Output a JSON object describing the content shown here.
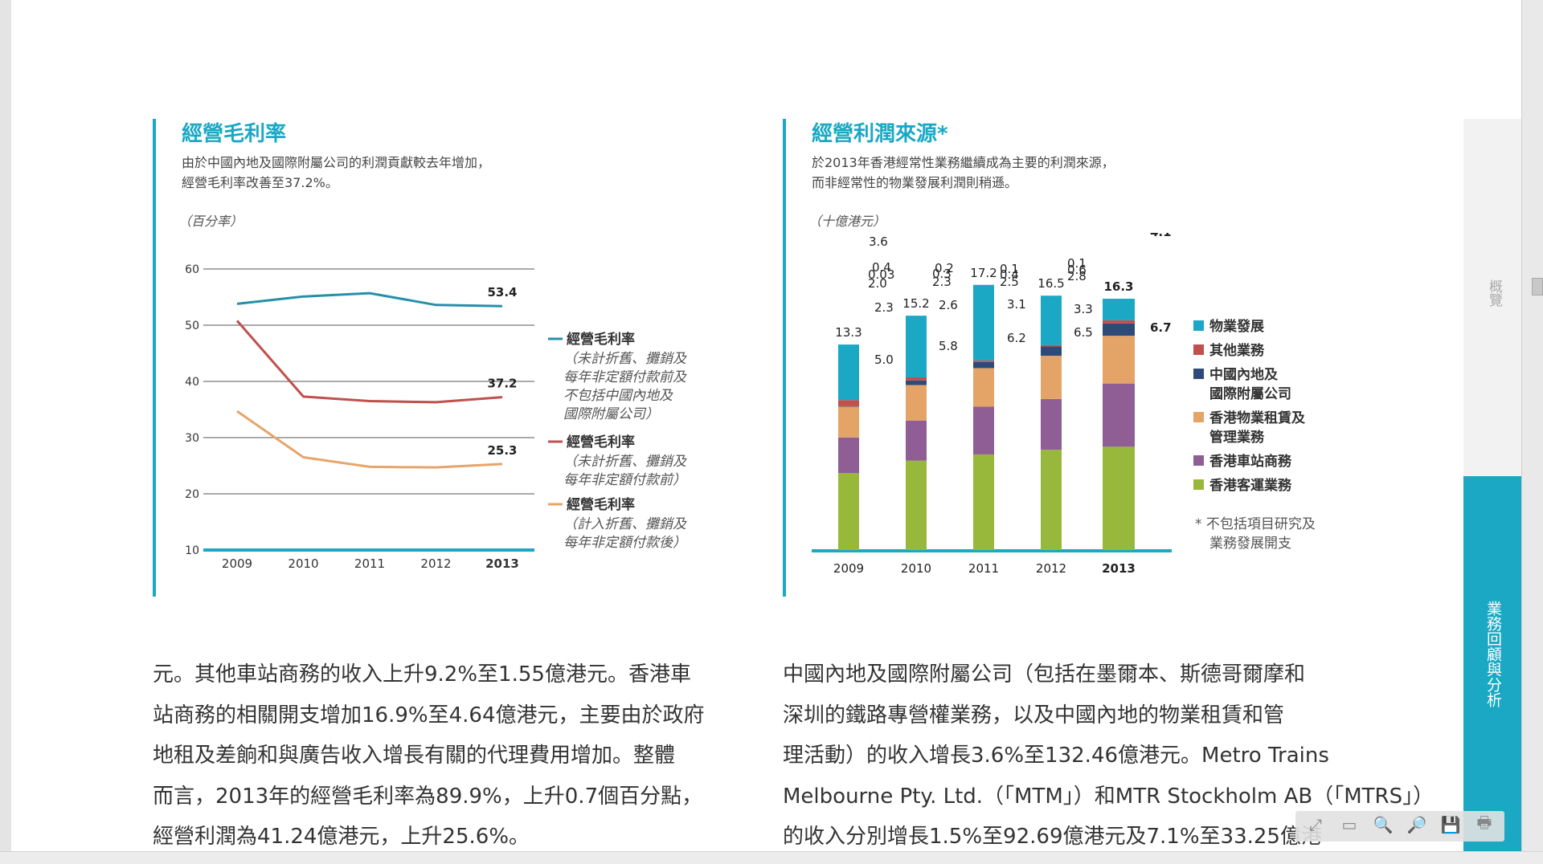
{
  "left_panel": {
    "title": "經營毛利率",
    "subtitle_lines": [
      "由於中國內地及國際附屬公司的利潤貢獻較去年增加，",
      "經營毛利率改善至37.2%。"
    ],
    "unit": "（百分率）",
    "colors": {
      "teal": "#2590a8",
      "red": "#c0504d",
      "orange": "#e6a56a"
    }
  },
  "right_panel": {
    "title": "經營利潤來源*",
    "subtitle_lines": [
      "於2013年香港經常性業務繼續成為主要的利潤來源，",
      "而非經常性的物業發展利潤則稍遜。"
    ],
    "unit": "（十億港元）",
    "footnote_lines": [
      "*  不包括項目研究及",
      "業務發展開支"
    ]
  },
  "chart_data": [
    {
      "type": "line",
      "x": [
        "2009",
        "2010",
        "2011",
        "2012",
        "2013"
      ],
      "ylim": [
        10,
        60
      ],
      "yticks": [
        10,
        20,
        30,
        40,
        50,
        60
      ],
      "series": [
        {
          "name": "經營毛利率",
          "note_lines": [
            "（未計折舊、攤銷及",
            "每年非定額付款前及",
            "不包括中國內地及",
            "國際附屬公司）"
          ],
          "color": "#2590a8",
          "values": [
            53.8,
            55.1,
            55.7,
            53.6,
            53.4
          ],
          "end_label": "53.4"
        },
        {
          "name": "經營毛利率",
          "note_lines": [
            "（未計折舊、攤銷及",
            "每年非定額付款前）"
          ],
          "color": "#c0504d",
          "values": [
            50.8,
            37.3,
            36.5,
            36.3,
            37.2
          ],
          "end_label": "37.2"
        },
        {
          "name": "經營毛利率",
          "note_lines": [
            "（計入折舊、攤銷及",
            "每年非定額付款後）"
          ],
          "color": "#e6a56a",
          "values": [
            34.7,
            26.5,
            24.8,
            24.7,
            25.3
          ],
          "end_label": "25.3"
        }
      ]
    },
    {
      "type": "bar",
      "stacked": true,
      "categories": [
        "2009",
        "2010",
        "2011",
        "2012",
        "2013"
      ],
      "totals": [
        "13.3",
        "15.2",
        "17.2",
        "16.5",
        "16.3"
      ],
      "ylim": [
        0,
        18
      ],
      "series": [
        {
          "name": "香港客運業務",
          "color": "#98b83c",
          "values": [
            5.0,
            5.8,
            6.2,
            6.5,
            6.7
          ],
          "labels": [
            "5.0",
            "5.8",
            "6.2",
            "6.5",
            "6.7"
          ]
        },
        {
          "name": "香港車站商務",
          "color": "#8f5e95",
          "values": [
            2.3,
            2.6,
            3.1,
            3.3,
            4.1
          ],
          "labels": [
            "2.3",
            "2.6",
            "3.1",
            "3.3",
            "4.1"
          ]
        },
        {
          "name": "香港物業租賃及管理業務",
          "legend_lines": [
            "香港物業租賃及",
            "管理業務"
          ],
          "color": "#e4a468",
          "values": [
            2.0,
            2.3,
            2.5,
            2.8,
            3.1
          ],
          "labels": [
            "2.0",
            "2.3",
            "2.5",
            "2.8",
            "3.1"
          ]
        },
        {
          "name": "中國內地及國際附屬公司",
          "legend_lines": [
            "中國內地及",
            "國際附屬公司"
          ],
          "color": "#2d4a78",
          "values": [
            0.03,
            0.3,
            0.4,
            0.6,
            0.8
          ],
          "labels": [
            "0.03",
            "0.3",
            "0.4",
            "0.6",
            "0.8"
          ]
        },
        {
          "name": "其他業務",
          "color": "#c0504d",
          "values": [
            0.4,
            0.2,
            0.1,
            0.1,
            0.2
          ],
          "labels": [
            "0.4",
            "0.2",
            "0.1",
            "0.1",
            "0.2"
          ]
        },
        {
          "name": "物業發展",
          "color": "#1aa8c4",
          "values": [
            3.6,
            4.0,
            4.9,
            3.2,
            1.4
          ],
          "labels": [
            "3.6",
            "4.0",
            "4.9",
            "3.2",
            "1.4"
          ]
        }
      ]
    }
  ],
  "body_left_lines": [
    "元。其他車站商務的收入上升9.2%至1.55億港元。香港車",
    "站商務的相關開支增加16.9%至4.64億港元，主要由於政府",
    "地租及差餉和與廣告收入增長有關的代理費用增加。整體",
    "而言，2013年的經營毛利率為89.9%，上升0.7個百分點，",
    "經營利潤為41.24億港元，上升25.6%。"
  ],
  "body_right_lines": [
    "中國內地及國際附屬公司（包括在墨爾本、斯德哥爾摩和",
    "深圳的鐵路專營權業務，以及中國內地的物業租賃和管",
    "理活動）的收入增長3.6%至132.46億港元。Metro Trains",
    "Melbourne Pty. Ltd.（「MTM」）和MTR Stockholm AB（「MTRS」）",
    "的收入分別增長1.5%至92.69億港元及7.1%至33.25億港"
  ],
  "side_tabs": {
    "overview": "概覽",
    "active": "業務回顧與分析",
    "active_color": "#1aa8c4"
  },
  "toolbar": [
    {
      "name": "fit-page-icon",
      "glyph": "⤢"
    },
    {
      "name": "fit-width-icon",
      "glyph": "▭"
    },
    {
      "name": "zoom-out-icon",
      "glyph": "🔍"
    },
    {
      "name": "zoom-in-icon",
      "glyph": "🔎"
    },
    {
      "name": "save-icon",
      "glyph": "💾"
    },
    {
      "name": "print-icon",
      "glyph": "🖶"
    }
  ]
}
